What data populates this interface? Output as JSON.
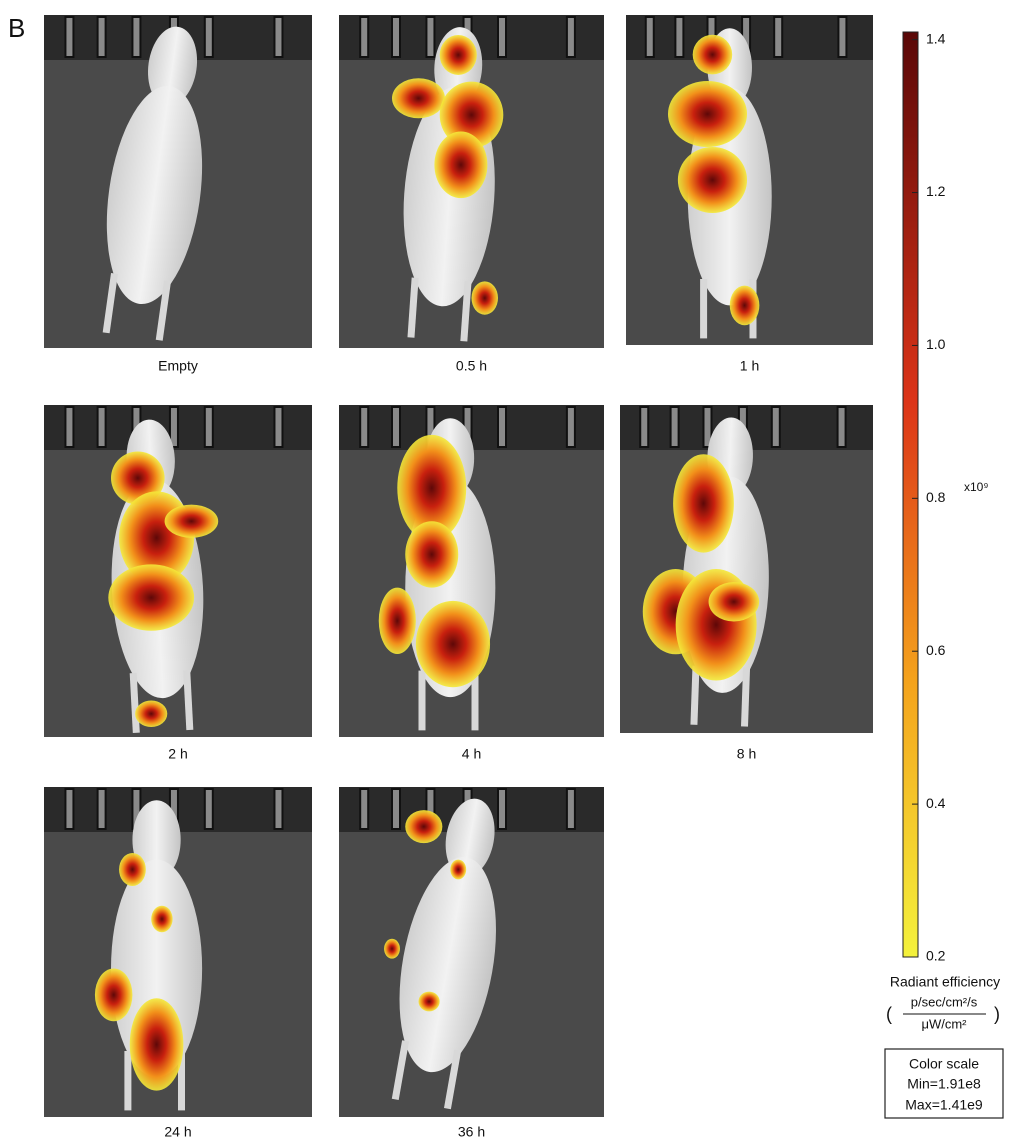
{
  "panel_label": "B",
  "panels": [
    {
      "label": "Empty"
    },
    {
      "label": "0.5 h"
    },
    {
      "label": "1 h"
    },
    {
      "label": "2 h"
    },
    {
      "label": "4 h"
    },
    {
      "label": "8 h"
    },
    {
      "label": "24 h"
    },
    {
      "label": "36 h"
    }
  ],
  "colorbar": {
    "lim": [
      0.2,
      1.41
    ],
    "ticks": [
      1.4,
      1.2,
      {
        "value": 1,
        "label": "1.0"
      },
      0.8,
      0.6,
      0.4,
      0.2
    ],
    "exponent": "x10⁹",
    "title": "Radiant efficiency",
    "unit_open": "(",
    "unit_numerator": "p/sec/cm²/s",
    "unit_denominator": "μW/cm²",
    "unit_close": ")"
  },
  "color_scale_box": {
    "title": "Color scale",
    "min": "Min=1.91e8",
    "max": "Max=1.41e9"
  }
}
